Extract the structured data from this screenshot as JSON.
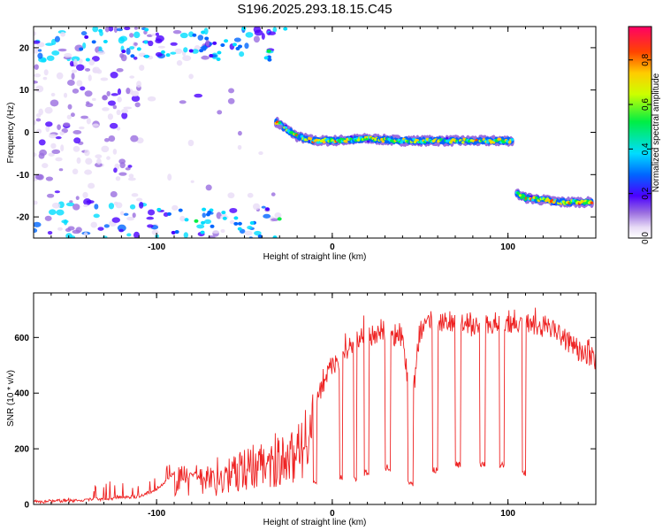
{
  "figure": {
    "title": "S196.2025.293.18.15.C45"
  },
  "chart_data": [
    {
      "type": "heatmap",
      "xlabel": "Height of straight line (km)",
      "ylabel": "Frequency (Hz)",
      "xlim": [
        -170,
        150
      ],
      "ylim": [
        -25,
        25
      ],
      "xticks": [
        "-100",
        "0",
        "100"
      ],
      "yticks": [
        "20",
        "10",
        "0",
        "-10",
        "-20"
      ],
      "colorbar": {
        "label": "Normalized spectral amplitude",
        "range": [
          0,
          0.95
        ],
        "ticks": [
          "0.0",
          "0.2",
          "0.4",
          "0.6",
          "0.8"
        ]
      },
      "features": [
        {
          "kind": "carrier-line",
          "x": [
            -32,
            -20,
            -10,
            0,
            20,
            40,
            60,
            80,
            103
          ],
          "y": [
            2.5,
            -1,
            -2,
            -2,
            -1.5,
            -2,
            -2,
            -2,
            -2
          ],
          "peak_amplitude": 0.85
        },
        {
          "kind": "carrier-line",
          "x": [
            105,
            110,
            130,
            148
          ],
          "y": [
            -14.5,
            -15.5,
            -16.5,
            -16.5
          ],
          "peak_amplitude": 0.9
        },
        {
          "kind": "noise-cloud",
          "x_range": [
            -170,
            -30
          ],
          "y_range": [
            -25,
            25
          ],
          "peak_amplitude": 0.5
        }
      ]
    },
    {
      "type": "line",
      "xlabel": "Height of straight line (km)",
      "ylabel": "SNR (10 * v/v)",
      "xlim": [
        -170,
        150
      ],
      "ylim": [
        0,
        760
      ],
      "xticks": [
        "-100",
        "0",
        "100"
      ],
      "yticks": [
        "0",
        "200",
        "400",
        "600"
      ],
      "series": [
        {
          "color": "#ee2222",
          "x": [
            -170,
            -150,
            -130,
            -110,
            -100,
            -95,
            -90,
            -85,
            -80,
            -75,
            -70,
            -65,
            -60,
            -55,
            -50,
            -45,
            -40,
            -35,
            -30,
            -25,
            -20,
            -15,
            -10,
            -5,
            0,
            5,
            10,
            15,
            20,
            25,
            30,
            35,
            40,
            45,
            50,
            55,
            60,
            65,
            70,
            75,
            80,
            85,
            90,
            95,
            100,
            105,
            110,
            115,
            120,
            130,
            140,
            150
          ],
          "y": [
            15,
            20,
            25,
            35,
            60,
            90,
            120,
            150,
            110,
            130,
            140,
            120,
            160,
            180,
            200,
            230,
            220,
            230,
            250,
            260,
            300,
            360,
            420,
            470,
            540,
            560,
            600,
            640,
            640,
            660,
            660,
            640,
            640,
            390,
            660,
            700,
            690,
            700,
            690,
            700,
            680,
            700,
            690,
            700,
            690,
            680,
            700,
            690,
            680,
            650,
            590,
            560
          ],
          "dips": [
            {
              "x": [
                -11,
                -9
              ],
              "y": 60
            },
            {
              "x": [
                4,
                6
              ],
              "y": 80
            },
            {
              "x": [
                12,
                14
              ],
              "y": 80
            },
            {
              "x": [
                18,
                21
              ],
              "y": 100
            },
            {
              "x": [
                30,
                33
              ],
              "y": 120
            },
            {
              "x": [
                43,
                46
              ],
              "y": 60
            },
            {
              "x": [
                57,
                60
              ],
              "y": 110
            },
            {
              "x": [
                70,
                73
              ],
              "y": 130
            },
            {
              "x": [
                84,
                87
              ],
              "y": 130
            },
            {
              "x": [
                95,
                98
              ],
              "y": 130
            },
            {
              "x": [
                108,
                110
              ],
              "y": 100
            }
          ]
        }
      ]
    }
  ]
}
